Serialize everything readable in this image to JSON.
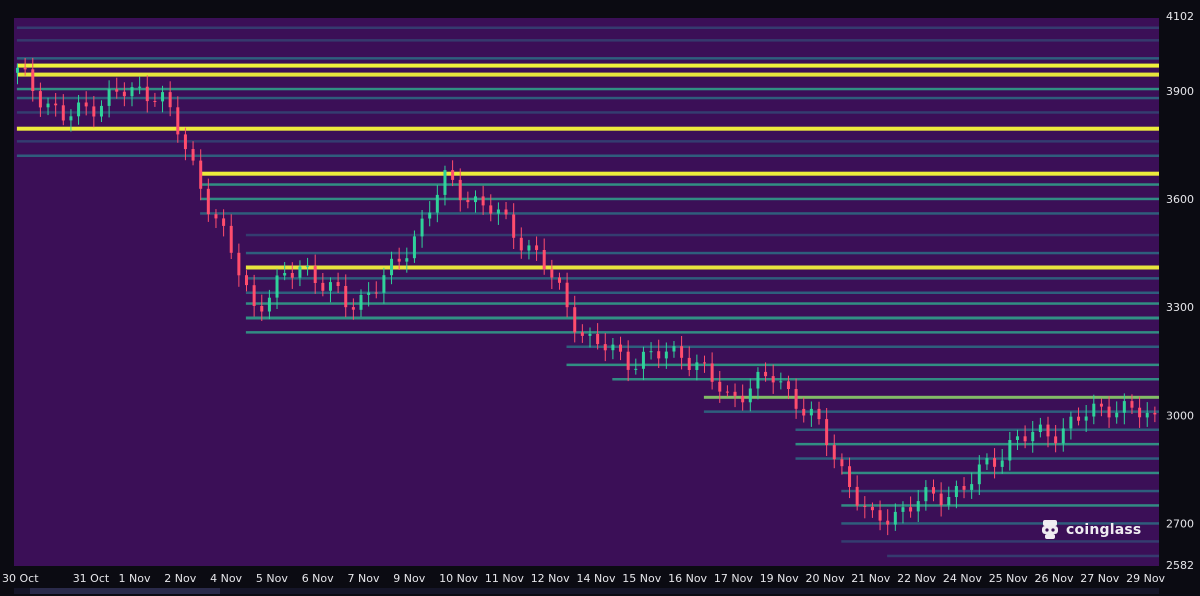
{
  "brand": {
    "logo_text": "coinglass"
  },
  "colors": {
    "background": "#0b0b12",
    "heatmap_base": "#3b0f57",
    "candle_up": "#2fd19a",
    "candle_down": "#ff4d6d",
    "hot": "#f4f53b",
    "warm": "#8fd96a",
    "mid": "#2fae8f",
    "cool": "#2b7a8a",
    "cold": "#32507a"
  },
  "chart_data": {
    "type": "heatmap",
    "title": "",
    "xlabel": "",
    "ylabel": "",
    "x_ticks": [
      "30 Oct",
      "31 Oct",
      "1 Nov",
      "2 Nov",
      "4 Nov",
      "5 Nov",
      "6 Nov",
      "7 Nov",
      "9 Nov",
      "10 Nov",
      "11 Nov",
      "12 Nov",
      "14 Nov",
      "15 Nov",
      "16 Nov",
      "17 Nov",
      "19 Nov",
      "20 Nov",
      "21 Nov",
      "22 Nov",
      "24 Nov",
      "25 Nov",
      "26 Nov",
      "27 Nov",
      "29 Nov"
    ],
    "y_ticks": [
      "4102",
      "3900",
      "3600",
      "3300",
      "3000",
      "2700",
      "2582"
    ],
    "ylim": [
      2582,
      4102
    ],
    "legend": "none",
    "price_path": [
      {
        "x": "30 Oct",
        "price": 3950
      },
      {
        "x": "31 Oct",
        "price": 3820
      },
      {
        "x": "1 Nov",
        "price": 3890
      },
      {
        "x": "2 Nov",
        "price": 3900
      },
      {
        "x": "4 Nov",
        "price": 3600
      },
      {
        "x": "5 Nov",
        "price": 3300
      },
      {
        "x": "6 Nov",
        "price": 3420
      },
      {
        "x": "7 Nov",
        "price": 3300
      },
      {
        "x": "9 Nov",
        "price": 3410
      },
      {
        "x": "10 Nov",
        "price": 3650
      },
      {
        "x": "11 Nov",
        "price": 3570
      },
      {
        "x": "12 Nov",
        "price": 3440
      },
      {
        "x": "14 Nov",
        "price": 3210
      },
      {
        "x": "15 Nov",
        "price": 3150
      },
      {
        "x": "16 Nov",
        "price": 3180
      },
      {
        "x": "17 Nov",
        "price": 3050
      },
      {
        "x": "19 Nov",
        "price": 3110
      },
      {
        "x": "20 Nov",
        "price": 2950
      },
      {
        "x": "21 Nov",
        "price": 2700
      },
      {
        "x": "22 Nov",
        "price": 2760
      },
      {
        "x": "24 Nov",
        "price": 2800
      },
      {
        "x": "25 Nov",
        "price": 2930
      },
      {
        "x": "26 Nov",
        "price": 2960
      },
      {
        "x": "27 Nov",
        "price": 3030
      },
      {
        "x": "29 Nov",
        "price": 2990
      }
    ],
    "liquidation_levels": [
      {
        "price": 4075,
        "intensity": 0.3
      },
      {
        "price": 4040,
        "intensity": 0.25
      },
      {
        "price": 3990,
        "intensity": 0.45
      },
      {
        "price": 3970,
        "intensity": 0.95
      },
      {
        "price": 3945,
        "intensity": 0.85
      },
      {
        "price": 3905,
        "intensity": 0.55
      },
      {
        "price": 3880,
        "intensity": 0.4
      },
      {
        "price": 3840,
        "intensity": 0.35
      },
      {
        "price": 3795,
        "intensity": 0.9
      },
      {
        "price": 3760,
        "intensity": 0.35
      },
      {
        "price": 3720,
        "intensity": 0.4
      },
      {
        "price": 3670,
        "intensity": 0.92
      },
      {
        "price": 3640,
        "intensity": 0.55
      },
      {
        "price": 3600,
        "intensity": 0.5
      },
      {
        "price": 3560,
        "intensity": 0.4
      },
      {
        "price": 3500,
        "intensity": 0.35
      },
      {
        "price": 3450,
        "intensity": 0.45
      },
      {
        "price": 3410,
        "intensity": 0.85
      },
      {
        "price": 3380,
        "intensity": 0.4
      },
      {
        "price": 3340,
        "intensity": 0.45
      },
      {
        "price": 3310,
        "intensity": 0.55
      },
      {
        "price": 3270,
        "intensity": 0.6
      },
      {
        "price": 3230,
        "intensity": 0.5
      },
      {
        "price": 3190,
        "intensity": 0.45
      },
      {
        "price": 3140,
        "intensity": 0.55
      },
      {
        "price": 3100,
        "intensity": 0.5
      },
      {
        "price": 3050,
        "intensity": 0.7
      },
      {
        "price": 3010,
        "intensity": 0.45
      },
      {
        "price": 2960,
        "intensity": 0.4
      },
      {
        "price": 2920,
        "intensity": 0.55
      },
      {
        "price": 2880,
        "intensity": 0.45
      },
      {
        "price": 2840,
        "intensity": 0.5
      },
      {
        "price": 2790,
        "intensity": 0.45
      },
      {
        "price": 2750,
        "intensity": 0.5
      },
      {
        "price": 2700,
        "intensity": 0.4
      },
      {
        "price": 2650,
        "intensity": 0.35
      },
      {
        "price": 2610,
        "intensity": 0.3
      }
    ]
  }
}
